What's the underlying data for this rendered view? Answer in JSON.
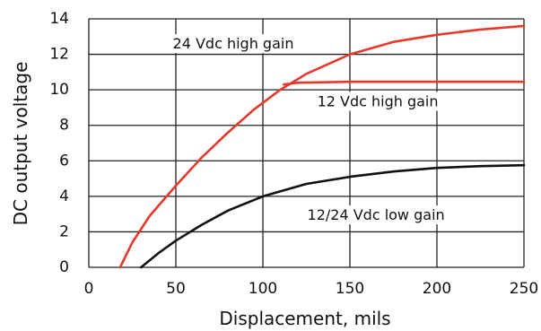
{
  "chart_data": {
    "type": "line",
    "title": "",
    "xlabel": "Displacement, mils",
    "ylabel": "DC output voltage",
    "xlim": [
      0,
      250
    ],
    "ylim": [
      0,
      14
    ],
    "xticks": [
      0,
      50,
      100,
      150,
      200,
      250
    ],
    "yticks": [
      0,
      2,
      4,
      6,
      8,
      10,
      12,
      14
    ],
    "grid": true,
    "legend": "none",
    "series": [
      {
        "name": "24 Vdc high gain",
        "color": "#e5392c",
        "x": [
          18,
          25,
          35,
          50,
          65,
          80,
          95,
          110,
          125,
          150,
          175,
          200,
          225,
          250
        ],
        "y": [
          0,
          1.4,
          2.9,
          4.6,
          6.2,
          7.6,
          8.9,
          10.0,
          10.9,
          12.0,
          12.7,
          13.1,
          13.4,
          13.6
        ]
      },
      {
        "name": "12 Vdc high gain",
        "color": "#e5392c",
        "x": [
          112,
          120,
          150,
          200,
          250
        ],
        "y": [
          10.3,
          10.4,
          10.45,
          10.45,
          10.45
        ]
      },
      {
        "name": "12/24 Vdc low gain",
        "color": "#111111",
        "x": [
          30,
          40,
          50,
          65,
          80,
          100,
          125,
          150,
          175,
          200,
          225,
          250
        ],
        "y": [
          0,
          0.8,
          1.5,
          2.4,
          3.2,
          4.0,
          4.7,
          5.1,
          5.4,
          5.6,
          5.7,
          5.75
        ]
      }
    ],
    "annotations": [
      {
        "text": "24 Vdc high gain",
        "x": 83,
        "y": 12.55,
        "anchor": "middle"
      },
      {
        "text": "12 Vdc high gain",
        "x": 166,
        "y": 9.3,
        "anchor": "middle"
      },
      {
        "text": "12/24 Vdc low gain",
        "x": 165,
        "y": 2.9,
        "anchor": "middle"
      }
    ]
  }
}
